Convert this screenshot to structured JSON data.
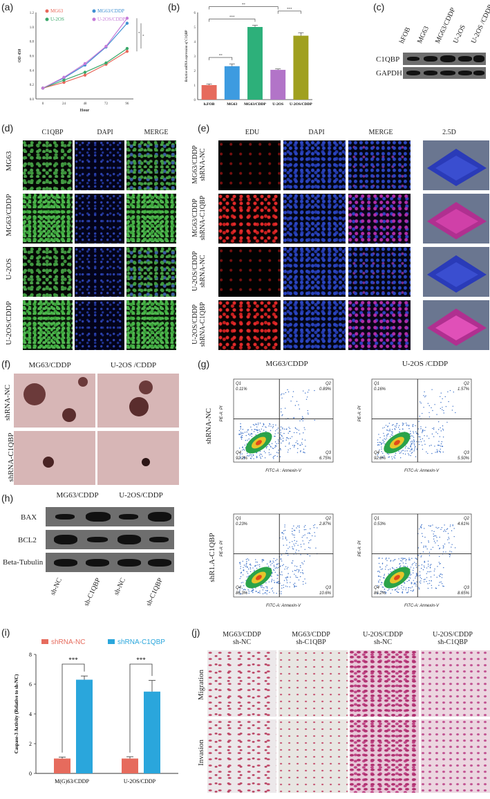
{
  "panels": {
    "a": "(a)",
    "b": "(b)",
    "c": "(c)",
    "d": "(d)",
    "e": "(e)",
    "f": "(f)",
    "g": "(g)",
    "h": "(h)",
    "i": "(i)",
    "j": "(j)"
  },
  "chart_data": [
    {
      "type": "line",
      "xlabel": "Hour",
      "ylabel": "OD 450",
      "x": [
        0,
        24,
        48,
        72,
        96
      ],
      "xticks": [
        "0",
        "24",
        "48",
        "72",
        "96"
      ],
      "yticks": [
        "0.0",
        "0.2",
        "0.4",
        "0.6",
        "0.8",
        "1.0",
        "1.2"
      ],
      "ylim": [
        0,
        1.2
      ],
      "series": [
        {
          "name": "MG63",
          "color": "#e8685b",
          "values": [
            0.15,
            0.23,
            0.33,
            0.48,
            0.66
          ]
        },
        {
          "name": "MG63/CDDP",
          "color": "#3f8fd2",
          "values": [
            0.15,
            0.29,
            0.47,
            0.72,
            1.05
          ]
        },
        {
          "name": "U-2OS",
          "color": "#3aa86a",
          "values": [
            0.15,
            0.26,
            0.37,
            0.5,
            0.7
          ]
        },
        {
          "name": "U-2OS/CDDP",
          "color": "#c57ad8",
          "values": [
            0.15,
            0.3,
            0.49,
            0.73,
            1.12
          ]
        }
      ],
      "annotations": [
        "*",
        "*"
      ]
    },
    {
      "type": "bar",
      "ylabel": "Relative mRNA expression of C1QBP",
      "categories": [
        "h.FOB",
        "MG63",
        "MG63/CDDP",
        "U-2OS",
        "U-2OS/CDDP"
      ],
      "values": [
        1.0,
        2.3,
        5.0,
        2.05,
        4.4
      ],
      "errors": [
        0.08,
        0.15,
        0.12,
        0.06,
        0.2
      ],
      "colors": [
        "#e66b5d",
        "#3d9be0",
        "#2db07a",
        "#b274c8",
        "#a0a020"
      ],
      "yticks": [
        "0",
        "1",
        "2",
        "3",
        "4",
        "5",
        "6"
      ],
      "ylim": [
        0,
        6
      ],
      "significance": [
        "**",
        "***",
        "**",
        "***"
      ]
    },
    {
      "type": "bar",
      "ylabel": "Caspase-3 Activity (Relative to sh-NC)",
      "categories": [
        "M(G)63/CDDP",
        "U-2OS/CDDP"
      ],
      "series": [
        {
          "name": "shRNA-NC",
          "color": "#e66b5d",
          "values": [
            1.0,
            1.0
          ],
          "errors": [
            0.1,
            0.12
          ]
        },
        {
          "name": "shRNA-C1QBP",
          "color": "#2aa6dc",
          "values": [
            6.3,
            5.5
          ],
          "errors": [
            0.25,
            0.75
          ]
        }
      ],
      "yticks": [
        "0",
        "2",
        "4",
        "6",
        "8"
      ],
      "ylim": [
        0,
        8
      ],
      "significance": [
        "***",
        "***"
      ]
    }
  ],
  "blot_c": {
    "columns": [
      "hFOB",
      "MG63",
      "MG63/CDDP",
      "U-2OS",
      "U-2OS /CDDP"
    ],
    "rows": [
      "C1QBP",
      "GAPDH"
    ]
  },
  "panel_d": {
    "columns": [
      "C1QBP",
      "DAPI",
      "MERGE"
    ],
    "rows": [
      "MG63",
      "MG63/CDDP",
      "U-2OS",
      "U-2OS/CDDP"
    ]
  },
  "panel_e": {
    "columns": [
      "EDU",
      "DAPI",
      "MERGE",
      "2.5D"
    ],
    "rows": [
      [
        "MG63/CDDP",
        "shRNA-NC"
      ],
      [
        "MG63/CDDP",
        "shRNA-C1QBP"
      ],
      [
        "U-2OS/CDDP",
        "shRNA-NC"
      ],
      [
        "U-2OS/CDDP",
        "shRNA-C1QBP"
      ]
    ]
  },
  "panel_f": {
    "columns": [
      "MG63/CDDP",
      "U-2OS /CDDP"
    ],
    "rows": [
      "shRNA-NC",
      "shRNA-C1QBP"
    ]
  },
  "panel_g": {
    "columns": [
      "MG63/CDDP",
      "U-2OS /CDDP"
    ],
    "rows": [
      "shRNA-NC",
      "shR1.A-C1QBP"
    ],
    "xaxis": [
      "FITC-A : Annexin-V",
      "FITC-A: Annexin-V",
      "FITC-A: Annexin-V",
      "FITC-A: Annexin-V"
    ],
    "yaxis": "PE-A: PI",
    "quadrants": [
      {
        "Q1": "0.11%",
        "Q2": "0.89%",
        "Q3": "6.75%",
        "Q4": "92.2%"
      },
      {
        "Q1": "0.16%",
        "Q2": "1.57%",
        "Q3": "5.50%",
        "Q4": "92.8%"
      },
      {
        "Q1": "0.23%",
        "Q2": "2.87%",
        "Q3": "10.6%",
        "Q4": "86.3%"
      },
      {
        "Q1": "0.53%",
        "Q2": "4.61%",
        "Q3": "8.65%",
        "Q4": "86.2%"
      }
    ],
    "qnames": [
      "Q1",
      "Q2",
      "Q3",
      "Q4"
    ]
  },
  "blot_h": {
    "groups": [
      "MG63/CDDP",
      "U-2OS/CDDP"
    ],
    "rows": [
      "BAX",
      "BCL2",
      "Beta-Tubulin"
    ],
    "lanes": [
      "sh-NC",
      "sh-C1QBP",
      "sh-NC",
      "sh-C1QBP"
    ]
  },
  "panel_j": {
    "columns": [
      [
        "MG63/CDDP",
        "sh-NC"
      ],
      [
        "MG63/CDDP",
        "sh-C1QBP"
      ],
      [
        "U-2OS/CDDP",
        "sh-NC"
      ],
      [
        "U-2OS/CDDP",
        "sh-C1QBP"
      ]
    ],
    "rows": [
      "Migration",
      "Invasion"
    ]
  }
}
